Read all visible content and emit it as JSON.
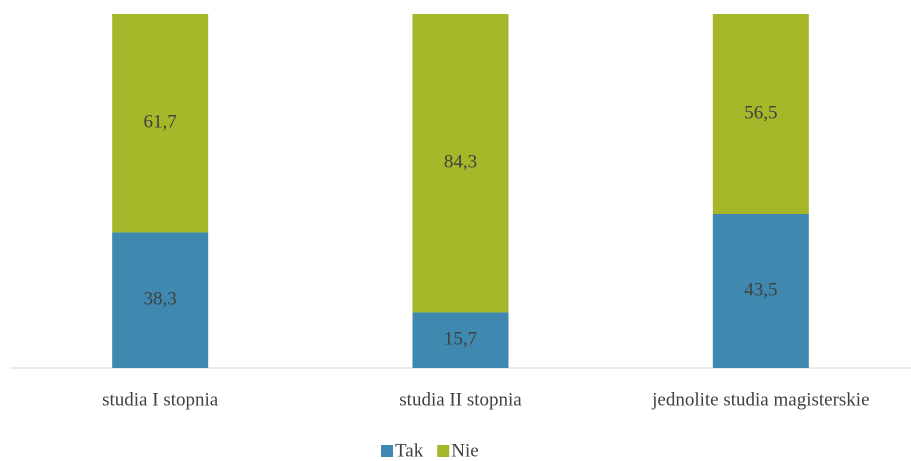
{
  "chart_data": {
    "type": "bar",
    "stacked": true,
    "categories": [
      "studia I stopnia",
      "studia II stopnia",
      "jednolite studia magisterskie"
    ],
    "series": [
      {
        "name": "Tak",
        "color": "#3f88b0",
        "values": [
          38.3,
          15.7,
          43.5
        ],
        "value_labels": [
          "38,3",
          "15,7",
          "43,5"
        ]
      },
      {
        "name": "Nie",
        "color": "#a6b72a",
        "values": [
          61.7,
          84.3,
          56.5
        ],
        "value_labels": [
          "61,7",
          "84,3",
          "56,5"
        ]
      }
    ],
    "ylim": [
      0,
      100
    ],
    "legend": "bottom"
  }
}
